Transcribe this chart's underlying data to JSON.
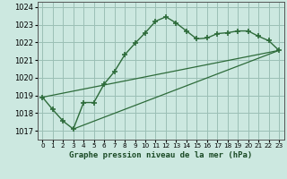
{
  "title": "Graphe pression niveau de la mer (hPa)",
  "background_color": "#cce8e0",
  "grid_color": "#9bbfb5",
  "line_color": "#2d6b3a",
  "marker_color": "#2d6b3a",
  "xlim": [
    -0.5,
    23.5
  ],
  "ylim": [
    1016.5,
    1024.3
  ],
  "yticks": [
    1017,
    1018,
    1019,
    1020,
    1021,
    1022,
    1023,
    1024
  ],
  "xtick_labels": [
    "0",
    "1",
    "2",
    "3",
    "4",
    "5",
    "6",
    "7",
    "8",
    "9",
    "10",
    "11",
    "12",
    "13",
    "14",
    "15",
    "16",
    "17",
    "18",
    "19",
    "20",
    "21",
    "22",
    "23"
  ],
  "series1_x": [
    0,
    1,
    2,
    3,
    4,
    5,
    6,
    7,
    8,
    9,
    10,
    11,
    12,
    13,
    14,
    15,
    16,
    17,
    18,
    19,
    20,
    21,
    22,
    23
  ],
  "series1_y": [
    1018.9,
    1018.2,
    1017.55,
    1017.1,
    1018.6,
    1018.6,
    1019.65,
    1020.35,
    1021.3,
    1021.95,
    1022.55,
    1023.2,
    1023.45,
    1023.1,
    1022.65,
    1022.2,
    1022.25,
    1022.5,
    1022.55,
    1022.65,
    1022.65,
    1022.35,
    1022.1,
    1021.55
  ],
  "series2_x": [
    0,
    23
  ],
  "series2_y": [
    1018.9,
    1021.55
  ],
  "series3_x": [
    3,
    23
  ],
  "series3_y": [
    1017.1,
    1021.55
  ],
  "xlabel_fontsize": 6.5,
  "ytick_fontsize": 6.0,
  "xtick_fontsize": 5.2
}
